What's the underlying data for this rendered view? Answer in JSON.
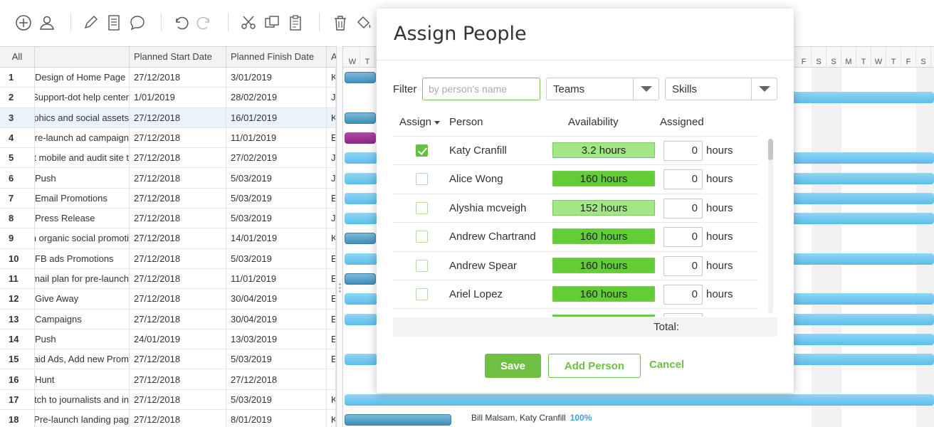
{
  "toolbar": {
    "icons": [
      "add-icon",
      "add-user-icon",
      "pencil-icon",
      "notes-icon",
      "comment-icon",
      "undo-icon",
      "redo-icon",
      "cut-icon",
      "copy-icon",
      "paste-icon",
      "trash-icon",
      "paint-bucket-icon"
    ]
  },
  "grid": {
    "headers": {
      "all": "All",
      "name": "",
      "start": "Planned Start Date",
      "finish": "Planned Finish Date",
      "extra": "A"
    },
    "rows": [
      {
        "num": "1",
        "name": "Design of Home Page",
        "start": "27/12/2018",
        "finish": "3/01/2019",
        "extra": "K"
      },
      {
        "num": "2",
        "name": "New Support-dot help center",
        "start": "1/01/2019",
        "finish": "28/02/2019",
        "extra": "J"
      },
      {
        "num": "3",
        "name": "Graphics and social assets",
        "start": "27/12/2018",
        "finish": "16/01/2019",
        "extra": "K"
      },
      {
        "num": "4",
        "name": "Pre-launch ad campaign",
        "start": "27/12/2018",
        "finish": "11/01/2019",
        "extra": "E"
      },
      {
        "num": "5",
        "name": "Test mobile and audit site t",
        "start": "27/12/2018",
        "finish": "27/02/2019",
        "extra": "J"
      },
      {
        "num": "6",
        "name": "Push",
        "start": "27/12/2018",
        "finish": "5/03/2019",
        "extra": "J"
      },
      {
        "num": "7",
        "name": "Email Promotions",
        "start": "27/12/2018",
        "finish": "5/03/2019",
        "extra": "E"
      },
      {
        "num": "8",
        "name": " Press Release",
        "start": "27/12/2018",
        "finish": "5/03/2019",
        "extra": "J"
      },
      {
        "num": "9",
        "name": "Plan organic social promoti",
        "start": "27/12/2018",
        "finish": "14/01/2019",
        "extra": "K"
      },
      {
        "num": "10",
        "name": "FB ads Promotions",
        "start": "27/12/2018",
        "finish": "5/03/2019",
        "extra": "E"
      },
      {
        "num": "11",
        "name": "Email plan for pre-launch",
        "start": "27/12/2018",
        "finish": "11/01/2019",
        "extra": "E"
      },
      {
        "num": "12",
        "name": " Give Away",
        "start": "27/12/2018",
        "finish": "30/04/2019",
        "extra": "E"
      },
      {
        "num": "13",
        "name": "Campaigns",
        "start": "27/12/2018",
        "finish": "30/04/2019",
        "extra": "E"
      },
      {
        "num": "14",
        "name": "Push",
        "start": "24/01/2019",
        "finish": "13/03/2019",
        "extra": "E"
      },
      {
        "num": "15",
        "name": "Paid Ads, Add new Prom",
        "start": "27/12/2018",
        "finish": "5/03/2019",
        "extra": "E"
      },
      {
        "num": "16",
        "name": "Hunt",
        "start": "27/12/2018",
        "finish": "27/12/2018",
        "extra": ""
      },
      {
        "num": "17",
        "name": "Pitch to journalists and in",
        "start": "27/12/2018",
        "finish": "5/03/2019",
        "extra": "K"
      },
      {
        "num": "18",
        "name": "Pre-launch landing pag",
        "start": "27/12/2018",
        "finish": "8/01/2019",
        "extra": "K"
      }
    ]
  },
  "gantt": {
    "days_left": [
      "W",
      "T"
    ],
    "days_right": [
      "F",
      "S",
      "S",
      "M",
      "T",
      "W",
      "T",
      "F",
      "S"
    ],
    "row18_label": "Bill Malsam, Katy Cranfill",
    "row18_pct": "100%"
  },
  "modal": {
    "title": "Assign People",
    "filter_label": "Filter",
    "filter_placeholder": "by person's name",
    "teams_label": "Teams",
    "skills_label": "Skills",
    "col_assign": "Assign",
    "col_person": "Person",
    "col_availability": "Availability",
    "col_assigned": "Assigned",
    "hours_unit": "hours",
    "people": [
      {
        "name": "Katy Cranfill",
        "availability": "3.2 hours",
        "level": "light",
        "assigned": "0",
        "checked": true
      },
      {
        "name": "Alice Wong",
        "availability": "160 hours",
        "level": "strong",
        "assigned": "0",
        "checked": false
      },
      {
        "name": "Alyshia mcveigh",
        "availability": "152 hours",
        "level": "light",
        "assigned": "0",
        "checked": false
      },
      {
        "name": "Andrew Chartrand",
        "availability": "160 hours",
        "level": "strong",
        "assigned": "0",
        "checked": false
      },
      {
        "name": "Andrew Spear",
        "availability": "160 hours",
        "level": "strong",
        "assigned": "0",
        "checked": false
      },
      {
        "name": "Ariel Lopez",
        "availability": "160 hours",
        "level": "strong",
        "assigned": "0",
        "checked": false
      }
    ],
    "total_label": "Total:",
    "save_label": "Save",
    "add_person_label": "Add Person",
    "cancel_label": "Cancel",
    "colors": {
      "accent": "#6fbf45",
      "avail_strong": "#62cd35",
      "avail_light": "#a2e686",
      "bar_blue": "#5bbde9",
      "bar_purple": "#8c2283"
    }
  }
}
